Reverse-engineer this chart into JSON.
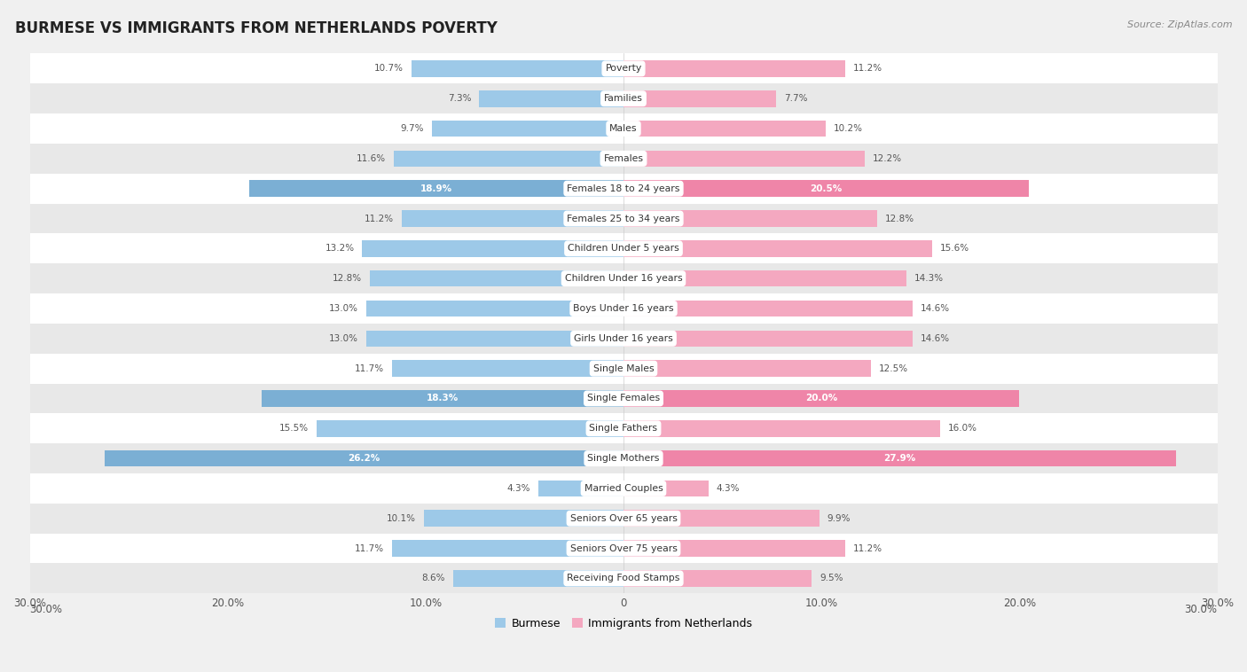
{
  "title": "BURMESE VS IMMIGRANTS FROM NETHERLANDS POVERTY",
  "source": "Source: ZipAtlas.com",
  "categories": [
    "Poverty",
    "Families",
    "Males",
    "Females",
    "Females 18 to 24 years",
    "Females 25 to 34 years",
    "Children Under 5 years",
    "Children Under 16 years",
    "Boys Under 16 years",
    "Girls Under 16 years",
    "Single Males",
    "Single Females",
    "Single Fathers",
    "Single Mothers",
    "Married Couples",
    "Seniors Over 65 years",
    "Seniors Over 75 years",
    "Receiving Food Stamps"
  ],
  "burmese": [
    10.7,
    7.3,
    9.7,
    11.6,
    18.9,
    11.2,
    13.2,
    12.8,
    13.0,
    13.0,
    11.7,
    18.3,
    15.5,
    26.2,
    4.3,
    10.1,
    11.7,
    8.6
  ],
  "netherlands": [
    11.2,
    7.7,
    10.2,
    12.2,
    20.5,
    12.8,
    15.6,
    14.3,
    14.6,
    14.6,
    12.5,
    20.0,
    16.0,
    27.9,
    4.3,
    9.9,
    11.2,
    9.5
  ],
  "color_burmese": "#9DC9E8",
  "color_netherlands": "#F4A8C0",
  "color_highlight_burmese": "#7BAFD4",
  "color_highlight_netherlands": "#EF85A8",
  "highlight_rows": [
    4,
    11,
    13
  ],
  "xlim": 30.0,
  "bar_height": 0.55,
  "background_color": "#f0f0f0",
  "row_bg_light": "#ffffff",
  "row_bg_alt": "#e8e8e8"
}
